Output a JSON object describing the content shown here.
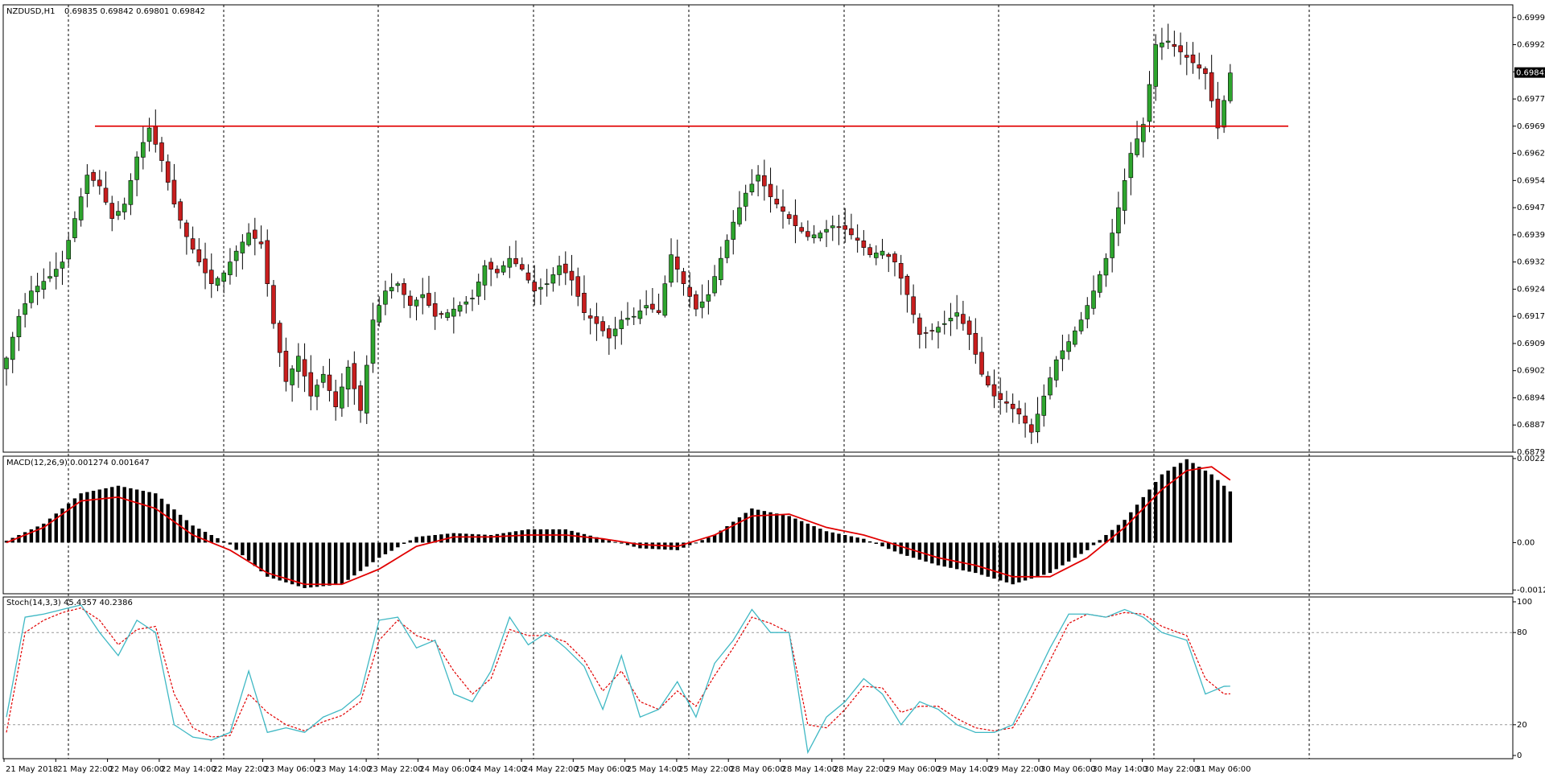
{
  "header": {
    "symbol_label": "NZDUSD,H1",
    "ohlc_label": "0.69835 0.69842 0.69801 0.69842",
    "macd_label": "MACD(12,26,9) 0.001274 0.001647",
    "stoch_label": "Stoch(14,3,3) 45.4357 40.2386"
  },
  "colors": {
    "bull": "#2ea52e",
    "bear": "#c81e1e",
    "line_red": "#e10000",
    "stoch_main": "#3fb8c4",
    "stoch_signal": "#e10000",
    "grid": "#000000"
  },
  "chart_data": [
    {
      "type": "candlestick",
      "name": "price",
      "ylim": [
        0.68795,
        0.7003
      ],
      "y_ticks": [
        "0.69995",
        "0.69920",
        "0.69845",
        "0.69770",
        "0.69695",
        "0.69620",
        "0.69545",
        "0.69470",
        "0.69395",
        "0.69320",
        "0.69245",
        "0.69170",
        "0.69095",
        "0.69020",
        "0.68945",
        "0.68870",
        "0.68795"
      ],
      "current_price": "0.69842",
      "horizontal_line": 0.69695,
      "x_labels": [
        "21 May 2018",
        "21 May 22:00",
        "22 May 06:00",
        "22 May 14:00",
        "22 May 22:00",
        "23 May 06:00",
        "23 May 14:00",
        "23 May 22:00",
        "24 May 06:00",
        "24 May 14:00",
        "24 May 22:00",
        "25 May 06:00",
        "25 May 14:00",
        "25 May 22:00",
        "28 May 06:00",
        "28 May 14:00",
        "28 May 22:00",
        "29 May 06:00",
        "29 May 14:00",
        "29 May 22:00",
        "30 May 06:00",
        "30 May 14:00",
        "30 May 22:00",
        "31 May 06:00"
      ],
      "close_anchors": [
        [
          0,
          0.69055
        ],
        [
          2,
          0.6917
        ],
        [
          4,
          0.6924
        ],
        [
          7,
          0.6928
        ],
        [
          9,
          0.6932
        ],
        [
          11,
          0.6944
        ],
        [
          13,
          0.6956
        ],
        [
          15,
          0.6953
        ],
        [
          17,
          0.6944
        ],
        [
          19,
          0.6948
        ],
        [
          21,
          0.6961
        ],
        [
          23,
          0.6969
        ],
        [
          25,
          0.696
        ],
        [
          27,
          0.6948
        ],
        [
          29,
          0.6939
        ],
        [
          31,
          0.6932
        ],
        [
          33,
          0.6926
        ],
        [
          35,
          0.6929
        ],
        [
          37,
          0.6935
        ],
        [
          39,
          0.694
        ],
        [
          41,
          0.6937
        ],
        [
          43,
          0.6915
        ],
        [
          45,
          0.6899
        ],
        [
          47,
          0.6906
        ],
        [
          49,
          0.6895
        ],
        [
          51,
          0.6901
        ],
        [
          53,
          0.6892
        ],
        [
          55,
          0.6903
        ],
        [
          57,
          0.6891
        ],
        [
          59,
          0.6916
        ],
        [
          61,
          0.6924
        ],
        [
          63,
          0.6926
        ],
        [
          65,
          0.692
        ],
        [
          67,
          0.6923
        ],
        [
          69,
          0.6917
        ],
        [
          71,
          0.6918
        ],
        [
          73,
          0.692
        ],
        [
          75,
          0.6922
        ],
        [
          77,
          0.6931
        ],
        [
          79,
          0.6929
        ],
        [
          81,
          0.6933
        ],
        [
          83,
          0.693
        ],
        [
          85,
          0.6924
        ],
        [
          87,
          0.6926
        ],
        [
          89,
          0.6931
        ],
        [
          91,
          0.6927
        ],
        [
          93,
          0.6918
        ],
        [
          95,
          0.6915
        ],
        [
          97,
          0.6911
        ],
        [
          99,
          0.6916
        ],
        [
          101,
          0.6917
        ],
        [
          103,
          0.692
        ],
        [
          105,
          0.6918
        ],
        [
          107,
          0.6934
        ],
        [
          109,
          0.6926
        ],
        [
          111,
          0.6919
        ],
        [
          113,
          0.6923
        ],
        [
          115,
          0.6933
        ],
        [
          117,
          0.6943
        ],
        [
          119,
          0.6951
        ],
        [
          121,
          0.6956
        ],
        [
          123,
          0.695
        ],
        [
          125,
          0.6946
        ],
        [
          127,
          0.6942
        ],
        [
          129,
          0.6939
        ],
        [
          131,
          0.694
        ],
        [
          133,
          0.6942
        ],
        [
          135,
          0.6941
        ],
        [
          137,
          0.6938
        ],
        [
          139,
          0.6934
        ],
        [
          141,
          0.6935
        ],
        [
          143,
          0.6932
        ],
        [
          145,
          0.6923
        ],
        [
          147,
          0.6912
        ],
        [
          149,
          0.6913
        ],
        [
          151,
          0.6915
        ],
        [
          153,
          0.6918
        ],
        [
          155,
          0.6912
        ],
        [
          157,
          0.6901
        ],
        [
          159,
          0.6895
        ],
        [
          161,
          0.6893
        ],
        [
          163,
          0.689
        ],
        [
          165,
          0.6885
        ],
        [
          167,
          0.6895
        ],
        [
          169,
          0.6905
        ],
        [
          171,
          0.691
        ],
        [
          173,
          0.6916
        ],
        [
          175,
          0.6924
        ],
        [
          177,
          0.6933
        ],
        [
          179,
          0.6947
        ],
        [
          181,
          0.6962
        ],
        [
          183,
          0.697
        ],
        [
          185,
          0.6992
        ],
        [
          187,
          0.6993
        ],
        [
          189,
          0.699
        ],
        [
          191,
          0.6987
        ],
        [
          193,
          0.6984
        ],
        [
          195,
          0.6969
        ],
        [
          197,
          0.69842
        ]
      ]
    },
    {
      "type": "macd",
      "name": "MACD(12,26,9)",
      "ylim": [
        -0.00135,
        0.00228
      ],
      "y_ticks": [
        "0.002218",
        "0.00",
        "-0.00125"
      ],
      "hist_anchors": [
        [
          0,
          5e-05
        ],
        [
          6,
          0.0005
        ],
        [
          12,
          0.0013
        ],
        [
          18,
          0.0015
        ],
        [
          24,
          0.0013
        ],
        [
          30,
          0.00045
        ],
        [
          36,
          -5e-05
        ],
        [
          42,
          -0.0009
        ],
        [
          48,
          -0.0012
        ],
        [
          54,
          -0.0011
        ],
        [
          60,
          -0.0004
        ],
        [
          66,
          0.00015
        ],
        [
          72,
          0.00025
        ],
        [
          78,
          0.0002
        ],
        [
          84,
          0.00035
        ],
        [
          90,
          0.00035
        ],
        [
          96,
          0.0001
        ],
        [
          102,
          -0.00015
        ],
        [
          108,
          -0.0002
        ],
        [
          114,
          0.0002
        ],
        [
          120,
          0.0009
        ],
        [
          126,
          0.0007
        ],
        [
          132,
          0.0003
        ],
        [
          138,
          0.0001
        ],
        [
          144,
          -0.0003
        ],
        [
          150,
          -0.0006
        ],
        [
          156,
          -0.0008
        ],
        [
          162,
          -0.0011
        ],
        [
          168,
          -0.0008
        ],
        [
          174,
          -0.0002
        ],
        [
          180,
          0.0006
        ],
        [
          186,
          0.0018
        ],
        [
          190,
          0.0022
        ],
        [
          194,
          0.0018
        ],
        [
          197,
          0.00135
        ]
      ],
      "signal_anchors": [
        [
          0,
          0.0
        ],
        [
          6,
          0.0004
        ],
        [
          12,
          0.0011
        ],
        [
          18,
          0.0012
        ],
        [
          24,
          0.0009
        ],
        [
          30,
          0.0002
        ],
        [
          36,
          -0.0002
        ],
        [
          42,
          -0.0008
        ],
        [
          48,
          -0.0011
        ],
        [
          54,
          -0.0011
        ],
        [
          60,
          -0.0007
        ],
        [
          66,
          -0.0001
        ],
        [
          72,
          0.00015
        ],
        [
          78,
          0.00015
        ],
        [
          84,
          0.0002
        ],
        [
          90,
          0.0002
        ],
        [
          96,
          0.0001
        ],
        [
          102,
          -5e-05
        ],
        [
          108,
          -0.0001
        ],
        [
          114,
          0.0002
        ],
        [
          120,
          0.0007
        ],
        [
          126,
          0.00075
        ],
        [
          132,
          0.0004
        ],
        [
          138,
          0.0002
        ],
        [
          144,
          -0.0001
        ],
        [
          150,
          -0.0004
        ],
        [
          156,
          -0.0006
        ],
        [
          162,
          -0.0009
        ],
        [
          168,
          -0.0009
        ],
        [
          174,
          -0.0004
        ],
        [
          180,
          0.0004
        ],
        [
          186,
          0.0014
        ],
        [
          190,
          0.0019
        ],
        [
          194,
          0.002
        ],
        [
          197,
          0.00165
        ]
      ]
    },
    {
      "type": "stochastic",
      "name": "Stoch(14,3,3)",
      "ylim": [
        0,
        100
      ],
      "y_ticks": [
        "100",
        "80",
        "20",
        "0"
      ],
      "levels": [
        80,
        20
      ],
      "main_anchors": [
        [
          0,
          25
        ],
        [
          3,
          90
        ],
        [
          6,
          92
        ],
        [
          9,
          95
        ],
        [
          12,
          98
        ],
        [
          15,
          80
        ],
        [
          18,
          65
        ],
        [
          21,
          88
        ],
        [
          24,
          80
        ],
        [
          27,
          20
        ],
        [
          30,
          12
        ],
        [
          33,
          10
        ],
        [
          36,
          15
        ],
        [
          39,
          55
        ],
        [
          42,
          15
        ],
        [
          45,
          18
        ],
        [
          48,
          15
        ],
        [
          51,
          25
        ],
        [
          54,
          30
        ],
        [
          57,
          40
        ],
        [
          60,
          88
        ],
        [
          63,
          90
        ],
        [
          66,
          70
        ],
        [
          69,
          75
        ],
        [
          72,
          40
        ],
        [
          75,
          35
        ],
        [
          78,
          55
        ],
        [
          81,
          90
        ],
        [
          84,
          72
        ],
        [
          87,
          80
        ],
        [
          90,
          70
        ],
        [
          93,
          58
        ],
        [
          96,
          30
        ],
        [
          99,
          65
        ],
        [
          102,
          25
        ],
        [
          105,
          30
        ],
        [
          108,
          48
        ],
        [
          111,
          25
        ],
        [
          114,
          60
        ],
        [
          117,
          75
        ],
        [
          120,
          95
        ],
        [
          123,
          80
        ],
        [
          126,
          80
        ],
        [
          129,
          2
        ],
        [
          132,
          25
        ],
        [
          135,
          35
        ],
        [
          138,
          50
        ],
        [
          141,
          40
        ],
        [
          144,
          20
        ],
        [
          147,
          35
        ],
        [
          150,
          30
        ],
        [
          153,
          20
        ],
        [
          156,
          15
        ],
        [
          159,
          15
        ],
        [
          162,
          20
        ],
        [
          165,
          45
        ],
        [
          168,
          70
        ],
        [
          171,
          92
        ],
        [
          174,
          92
        ],
        [
          177,
          90
        ],
        [
          180,
          95
        ],
        [
          183,
          90
        ],
        [
          186,
          80
        ],
        [
          190,
          75
        ],
        [
          193,
          40
        ],
        [
          196,
          45
        ]
      ],
      "signal_anchors": [
        [
          0,
          15
        ],
        [
          3,
          80
        ],
        [
          6,
          88
        ],
        [
          9,
          93
        ],
        [
          12,
          96
        ],
        [
          15,
          88
        ],
        [
          18,
          72
        ],
        [
          21,
          82
        ],
        [
          24,
          84
        ],
        [
          27,
          40
        ],
        [
          30,
          18
        ],
        [
          33,
          12
        ],
        [
          36,
          13
        ],
        [
          39,
          40
        ],
        [
          42,
          28
        ],
        [
          45,
          20
        ],
        [
          48,
          16
        ],
        [
          51,
          22
        ],
        [
          54,
          26
        ],
        [
          57,
          35
        ],
        [
          60,
          75
        ],
        [
          63,
          88
        ],
        [
          66,
          78
        ],
        [
          69,
          74
        ],
        [
          72,
          55
        ],
        [
          75,
          40
        ],
        [
          78,
          50
        ],
        [
          81,
          82
        ],
        [
          84,
          78
        ],
        [
          87,
          78
        ],
        [
          90,
          74
        ],
        [
          93,
          62
        ],
        [
          96,
          42
        ],
        [
          99,
          55
        ],
        [
          102,
          35
        ],
        [
          105,
          30
        ],
        [
          108,
          42
        ],
        [
          111,
          32
        ],
        [
          114,
          52
        ],
        [
          117,
          70
        ],
        [
          120,
          90
        ],
        [
          123,
          86
        ],
        [
          126,
          80
        ],
        [
          129,
          20
        ],
        [
          132,
          18
        ],
        [
          135,
          30
        ],
        [
          138,
          45
        ],
        [
          141,
          44
        ],
        [
          144,
          28
        ],
        [
          147,
          32
        ],
        [
          150,
          32
        ],
        [
          153,
          24
        ],
        [
          156,
          18
        ],
        [
          159,
          16
        ],
        [
          162,
          18
        ],
        [
          165,
          38
        ],
        [
          168,
          62
        ],
        [
          171,
          86
        ],
        [
          174,
          92
        ],
        [
          177,
          90
        ],
        [
          180,
          93
        ],
        [
          183,
          92
        ],
        [
          186,
          84
        ],
        [
          190,
          78
        ],
        [
          193,
          50
        ],
        [
          196,
          40
        ]
      ]
    }
  ]
}
